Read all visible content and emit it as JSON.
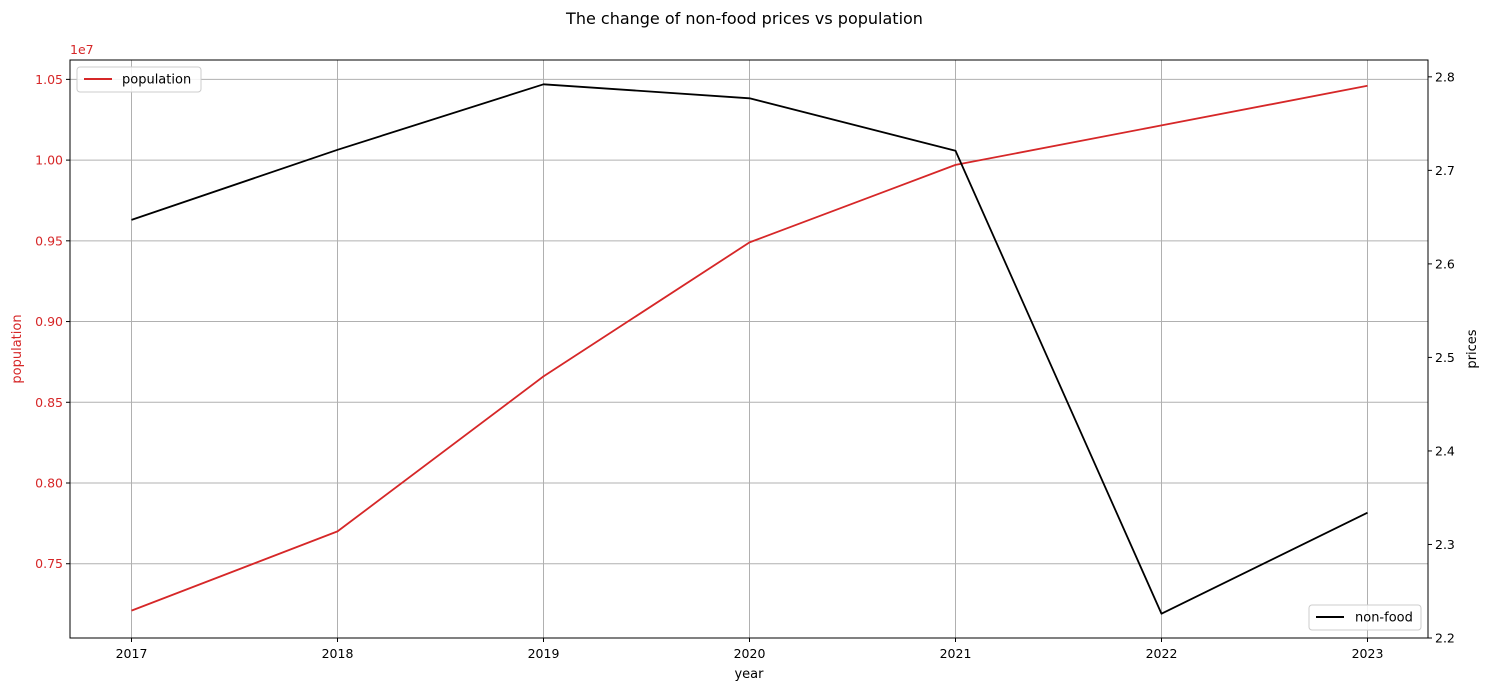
{
  "chart_data": {
    "type": "line",
    "title": "The change of non-food prices vs population",
    "xlabel": "year",
    "x": [
      "2017",
      "2018",
      "2019",
      "2020",
      "2021",
      "2022",
      "2023"
    ],
    "y_left": {
      "label": "population",
      "color": "#d62728",
      "ylim": [
        7040000,
        10620000
      ],
      "ticks": [
        0.75,
        0.8,
        0.85,
        0.9,
        0.95,
        1.0,
        1.05
      ],
      "tick_labels": [
        "0.75",
        "0.80",
        "0.85",
        "0.90",
        "0.95",
        "1.00",
        "1.05"
      ],
      "offset_label": "1e7"
    },
    "y_right": {
      "label": "prices",
      "color": "#000000",
      "ylim": [
        2.2,
        2.818
      ],
      "ticks": [
        2.2,
        2.3,
        2.4,
        2.5,
        2.6,
        2.7,
        2.8
      ],
      "tick_labels": [
        "2.2",
        "2.3",
        "2.4",
        "2.5",
        "2.6",
        "2.7",
        "2.8"
      ]
    },
    "series": [
      {
        "name": "population",
        "axis": "left",
        "color": "#d62728",
        "values": [
          7210000,
          7700000,
          8660000,
          9490000,
          9970000,
          10215000,
          10460000
        ]
      },
      {
        "name": "non-food",
        "axis": "right",
        "color": "#000000",
        "values": [
          2.647,
          2.722,
          2.792,
          2.777,
          2.721,
          2.226,
          2.334
        ]
      }
    ],
    "grid": true,
    "legends": [
      {
        "series": "population",
        "placement": "top-left"
      },
      {
        "series": "non-food",
        "placement": "bottom-right"
      }
    ]
  }
}
